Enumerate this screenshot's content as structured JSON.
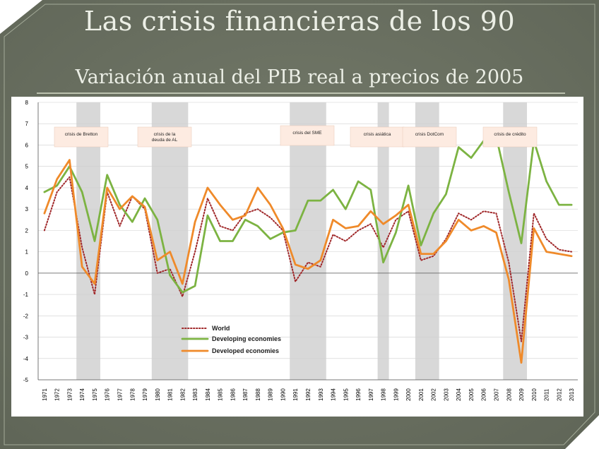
{
  "slide": {
    "title": "Las crisis financieras de los 90",
    "subtitle": "Variación anual del PIB real a precios de 2005"
  },
  "colors": {
    "background": "#6f7565",
    "world": "#a0282a",
    "developing": "#7cb342",
    "developed": "#ef8a2a",
    "crisis_band": "#d8d8d8"
  },
  "chart_data": {
    "type": "line",
    "title": "Variación anual del PIB real a precios de 2005",
    "xlabel": "",
    "ylabel": "",
    "ylim": [
      -5,
      8
    ],
    "y_ticks": [
      "8",
      "7",
      "6",
      "5",
      "4",
      "3",
      "2",
      "1",
      "0",
      "-1",
      "-2",
      "-3",
      "-4",
      "-5"
    ],
    "x": [
      1971,
      1972,
      1973,
      1974,
      1975,
      1976,
      1977,
      1978,
      1979,
      1980,
      1981,
      1982,
      1983,
      1984,
      1985,
      1986,
      1987,
      1988,
      1989,
      1990,
      1991,
      1992,
      1993,
      1994,
      1995,
      1996,
      1997,
      1998,
      1999,
      2000,
      2001,
      2002,
      2003,
      2004,
      2005,
      2006,
      2007,
      2008,
      2009,
      2010,
      2011,
      2012,
      2013
    ],
    "x_labels": [
      "1971",
      "1972",
      "1973",
      "1974",
      "1975",
      "1976",
      "1977",
      "1978",
      "1979",
      "1980",
      "1981",
      "1982",
      "1983",
      "1984",
      "1985",
      "1986",
      "1987",
      "1988",
      "1989",
      "1990",
      "1991",
      "1992",
      "1993",
      "1994",
      "1995",
      "1996",
      "1997",
      "1998",
      "1999",
      "2000",
      "2001",
      "2002",
      "2003",
      "2004",
      "2005",
      "2006",
      "2007",
      "2008",
      "2009",
      "2010",
      "2011",
      "2012",
      "2013"
    ],
    "grid": true,
    "legend": "bottom-left-center",
    "series": [
      {
        "name": "World",
        "style": "dotted",
        "values": [
          2.0,
          3.8,
          4.5,
          1.2,
          -1.0,
          3.8,
          2.2,
          3.6,
          3.0,
          0.0,
          0.2,
          -1.1,
          1.0,
          3.5,
          2.2,
          2.0,
          2.8,
          3.0,
          2.6,
          2.0,
          -0.4,
          0.5,
          0.3,
          1.8,
          1.5,
          2.0,
          2.3,
          1.2,
          2.5,
          2.9,
          0.6,
          0.8,
          1.6,
          2.8,
          2.5,
          2.9,
          2.8,
          0.5,
          -3.2,
          2.8,
          1.6,
          1.1,
          1.0
        ]
      },
      {
        "name": "Developing economies",
        "style": "solid",
        "values": [
          3.8,
          4.1,
          5.0,
          3.8,
          1.5,
          4.6,
          3.2,
          2.4,
          3.5,
          2.5,
          -0.1,
          -0.9,
          -0.6,
          2.7,
          1.5,
          1.5,
          2.5,
          2.2,
          1.6,
          1.9,
          2.0,
          3.4,
          3.4,
          3.9,
          3.0,
          4.3,
          3.9,
          0.5,
          1.9,
          4.1,
          1.3,
          2.8,
          3.7,
          5.9,
          5.4,
          6.2,
          6.4,
          3.8,
          1.4,
          6.2,
          4.3,
          3.2,
          3.2
        ]
      },
      {
        "name": "Developed economies",
        "style": "solid",
        "values": [
          2.8,
          4.4,
          5.3,
          0.3,
          -0.5,
          4.0,
          3.0,
          3.6,
          3.1,
          0.6,
          1.0,
          -0.5,
          2.4,
          4.0,
          3.2,
          2.5,
          2.7,
          4.0,
          3.2,
          2.1,
          0.4,
          0.2,
          0.6,
          2.5,
          2.1,
          2.2,
          2.9,
          2.3,
          2.7,
          3.2,
          0.9,
          0.9,
          1.5,
          2.5,
          2.0,
          2.2,
          1.9,
          -0.3,
          -4.2,
          2.1,
          1.0,
          0.9,
          0.8
        ]
      }
    ],
    "crisis_bands": [
      {
        "label": "crisis de Bretton",
        "start": 1974,
        "end": 1975
      },
      {
        "label": "crisis de la deuda de AL",
        "start": 1980,
        "end": 1982
      },
      {
        "label": "crisis del SME",
        "start": 1991,
        "end": 1993
      },
      {
        "label": "crisis asiática",
        "start": 1998,
        "end": 1998
      },
      {
        "label": "crisis DotCom",
        "start": 2001,
        "end": 2002
      },
      {
        "label": "crisis de crédito",
        "start": 2008,
        "end": 2009
      }
    ]
  }
}
